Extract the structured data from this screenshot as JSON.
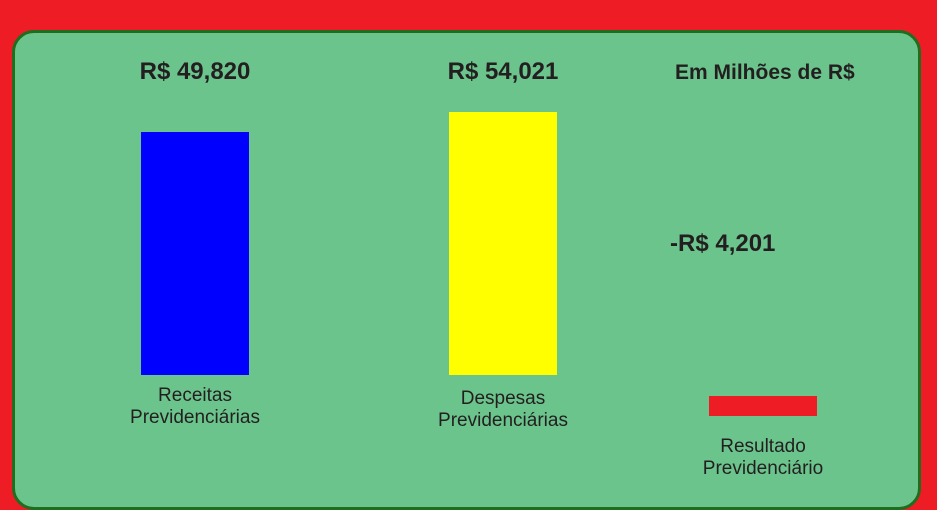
{
  "chart_data": {
    "type": "bar",
    "annotation": "Em Milhões de R$",
    "categories": [
      "Receitas Previdenciárias",
      "Despesas Previdenciárias",
      "Resultado Previdenciário"
    ],
    "values": [
      49820,
      54021,
      -4201
    ],
    "value_labels": [
      "R$ 49,820",
      "R$ 54,021",
      "-R$ 4,201"
    ],
    "colors": [
      "#0000ff",
      "#ffff00",
      "#ee1c25"
    ]
  }
}
